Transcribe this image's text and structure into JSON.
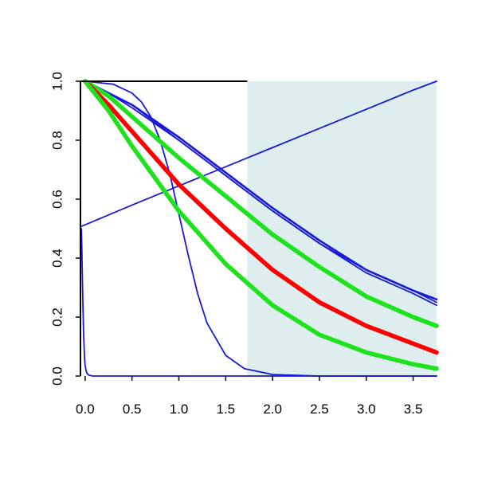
{
  "chart_data": {
    "type": "line",
    "title": "",
    "xlabel": "",
    "ylabel": "",
    "xlim": [
      -0.05,
      3.75
    ],
    "ylim": [
      0,
      1
    ],
    "x_ticks": [
      0.0,
      0.5,
      1.0,
      1.5,
      2.0,
      2.5,
      3.0,
      3.5
    ],
    "x_tick_labels": [
      "0.0",
      "0.5",
      "1.0",
      "1.5",
      "2.0",
      "2.5",
      "3.0",
      "3.5"
    ],
    "y_ticks": [
      0.0,
      0.2,
      0.4,
      0.6,
      0.8,
      1.0
    ],
    "y_tick_labels": [
      "0.0",
      "0.2",
      "0.4",
      "0.6",
      "0.8",
      "1.0"
    ],
    "grid": false,
    "legend": "none",
    "shaded_region": {
      "x_start": 1.73,
      "x_end": 3.75,
      "color": "#deeded"
    },
    "series": [
      {
        "color": "#1a1ad6",
        "width": "thin",
        "x": [
          0.0,
          0.25,
          0.5,
          1.0,
          1.5,
          2.0,
          2.5,
          3.0,
          3.5,
          3.75
        ],
        "y": [
          1.0,
          0.96,
          0.92,
          0.8,
          0.68,
          0.56,
          0.45,
          0.35,
          0.28,
          0.24
        ]
      },
      {
        "color": "#1a1ad6",
        "width": "thin",
        "x": [
          0.0,
          0.25,
          0.5,
          1.0,
          1.5,
          2.0,
          2.5,
          3.0,
          3.5,
          3.75
        ],
        "y": [
          1.0,
          0.96,
          0.91,
          0.8,
          0.68,
          0.56,
          0.45,
          0.36,
          0.29,
          0.25
        ]
      },
      {
        "color": "#1a1ad6",
        "width": "medium",
        "x": [
          0.0,
          0.25,
          0.5,
          1.0,
          1.5,
          2.0,
          2.5,
          3.0,
          3.5,
          3.75
        ],
        "y": [
          1.0,
          0.96,
          0.92,
          0.81,
          0.69,
          0.57,
          0.46,
          0.36,
          0.29,
          0.26
        ]
      },
      {
        "color": "#1a1ad6",
        "width": "thin",
        "x": [
          -0.05,
          0.0,
          0.5,
          1.0,
          1.5,
          2.0,
          2.5,
          3.0,
          3.5,
          3.75
        ],
        "y": [
          0.507,
          0.513,
          0.58,
          0.645,
          0.71,
          0.775,
          0.84,
          0.905,
          0.97,
          1.0
        ]
      },
      {
        "color": "#1a1ad6",
        "width": "thin",
        "x": [
          0.0,
          0.3,
          0.5,
          0.6,
          0.7,
          0.8,
          0.9,
          1.0,
          1.1,
          1.2,
          1.3,
          1.5,
          1.7,
          2.0,
          2.5,
          3.0,
          3.75
        ],
        "y": [
          1.0,
          0.99,
          0.96,
          0.93,
          0.88,
          0.8,
          0.69,
          0.55,
          0.41,
          0.28,
          0.18,
          0.07,
          0.025,
          0.005,
          0.0,
          0.0,
          0.0
        ]
      },
      {
        "color": "#1a1ad6",
        "width": "thin",
        "x": [
          -0.04,
          -0.035,
          -0.03,
          -0.025,
          -0.02,
          -0.015,
          -0.01,
          -0.005,
          0.0,
          0.01,
          0.02,
          0.04,
          0.08,
          0.2,
          0.5,
          1.0,
          2.0,
          3.75
        ],
        "y": [
          0.5,
          0.43,
          0.34,
          0.26,
          0.19,
          0.13,
          0.09,
          0.055,
          0.035,
          0.018,
          0.009,
          0.003,
          0.0,
          0.0,
          0.0,
          0.0,
          0.0,
          0.0
        ]
      },
      {
        "color": "#1de21d",
        "width": "thick",
        "x": [
          0.0,
          0.25,
          0.5,
          1.0,
          1.5,
          2.0,
          2.5,
          3.0,
          3.5,
          3.75
        ],
        "y": [
          1.0,
          0.95,
          0.88,
          0.74,
          0.61,
          0.48,
          0.37,
          0.27,
          0.2,
          0.17
        ]
      },
      {
        "color": "#ff0000",
        "width": "thick",
        "x": [
          0.0,
          0.25,
          0.5,
          1.0,
          1.5,
          2.0,
          2.5,
          3.0,
          3.5,
          3.75
        ],
        "y": [
          1.0,
          0.92,
          0.83,
          0.65,
          0.5,
          0.36,
          0.25,
          0.17,
          0.11,
          0.08
        ]
      },
      {
        "color": "#1de21d",
        "width": "thick",
        "x": [
          0.0,
          0.25,
          0.5,
          1.0,
          1.5,
          2.0,
          2.5,
          3.0,
          3.5,
          3.75
        ],
        "y": [
          1.0,
          0.9,
          0.78,
          0.56,
          0.38,
          0.24,
          0.14,
          0.08,
          0.04,
          0.025
        ]
      }
    ]
  }
}
